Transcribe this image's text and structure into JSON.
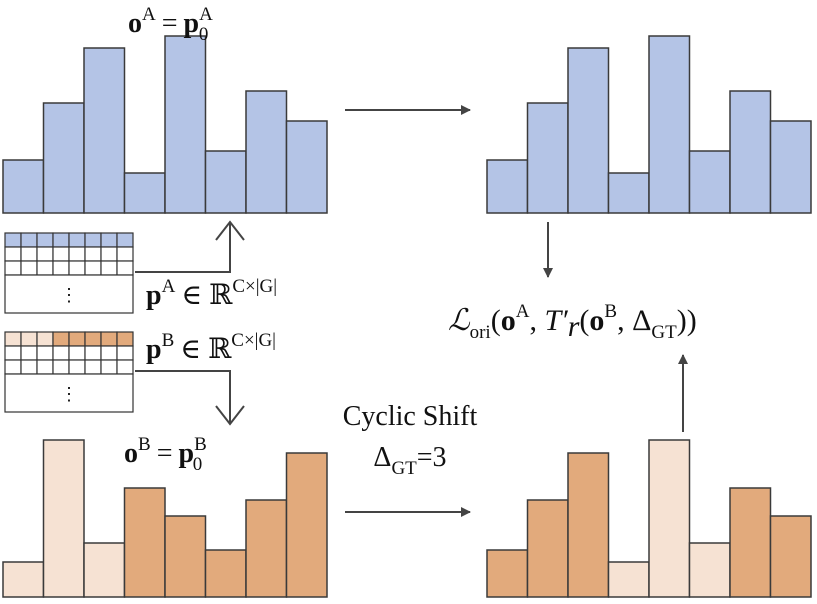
{
  "labels": {
    "oA": {
      "base": "o",
      "sup": "A",
      "eq": "=",
      "rhs": "p",
      "rhs_sup": "A",
      "rhs_sub": "0"
    },
    "pA": {
      "base": "p",
      "sup": "A",
      "rel": "∈ ℝ",
      "space": "C×|G|"
    },
    "pB": {
      "base": "p",
      "sup": "B",
      "rel": "∈ ℝ",
      "space": "C×|G|"
    },
    "oB": {
      "base": "o",
      "sup": "B",
      "eq": "=",
      "rhs": "p",
      "rhs_sup": "B",
      "rhs_sub": "0"
    },
    "shift": {
      "title": "Cyclic Shift",
      "delta": "Δ",
      "sub": "GT",
      "eq": "=3"
    },
    "loss": {
      "L": "ℒ",
      "sub": "ori",
      "open": "(",
      "o": "o",
      "o_sup": "A",
      "comma": ", ",
      "T": "T′",
      "r": "r",
      "open2": "(",
      "o2": "o",
      "o2_sup": "B",
      "comma2": ", ",
      "delta": "Δ",
      "delta_sub": "GT",
      "close": "))"
    },
    "grid_dots": [
      "⋮",
      "⋮"
    ]
  }
}
